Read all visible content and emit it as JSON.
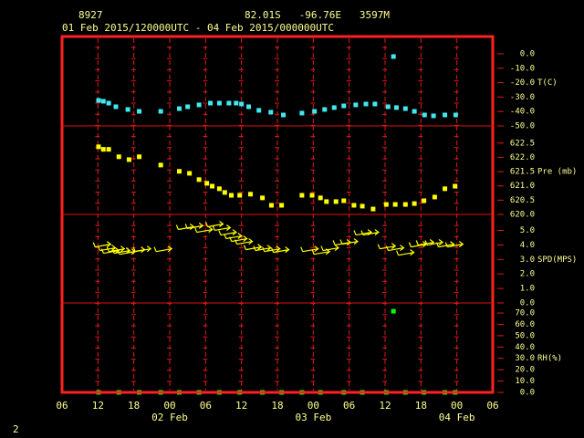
{
  "header": {
    "station": "8927",
    "location": "82.01S   -96.76E   3597M",
    "period": "01 Feb 2015/120000UTC - 04 Feb 2015/000000UTC"
  },
  "page_number": "2",
  "chart_data": [
    {
      "type": "scatter",
      "y_label": "T(C)",
      "color": "#40e8f0",
      "xlim": [
        0,
        72
      ],
      "ylim": [
        -50,
        12
      ],
      "yticks": [
        {
          "value": 0,
          "label": "0.0"
        },
        {
          "value": -10,
          "label": "-10.0"
        },
        {
          "value": -20,
          "label": "-20.0"
        },
        {
          "value": -30,
          "label": "-30.0"
        },
        {
          "value": -40,
          "label": "-40.0"
        },
        {
          "value": -50,
          "label": "-50.0"
        }
      ],
      "x": [
        6.1,
        6.9,
        7.8,
        9.0,
        11.0,
        12.9,
        16.5,
        19.6,
        21.0,
        22.9,
        24.8,
        26.3,
        27.9,
        29.1,
        30.0,
        31.2,
        32.9,
        34.9,
        37.0,
        40.1,
        42.2,
        43.9,
        45.5,
        47.1,
        49.1,
        50.8,
        52.3,
        54.5,
        55.4,
        55.9,
        57.4,
        58.9,
        60.6,
        62.1,
        64.0,
        65.8
      ],
      "values": [
        -32.3,
        -32.9,
        -34.2,
        -36.7,
        -38.6,
        -39.9,
        -39.9,
        -38.0,
        -36.7,
        -35.4,
        -34.2,
        -34.2,
        -34.2,
        -34.2,
        -34.8,
        -36.7,
        -39.2,
        -40.5,
        -42.4,
        -41.1,
        -39.9,
        -38.6,
        -37.3,
        -36.1,
        -35.4,
        -34.8,
        -34.8,
        -36.7,
        -1.9,
        -37.3,
        -38.0,
        -39.9,
        -42.4,
        -43.0,
        -42.4,
        -42.4
      ]
    },
    {
      "type": "scatter",
      "y_label": "Pre (mb)",
      "color": "#ffff00",
      "xlim": [
        0,
        72
      ],
      "ylim": [
        620,
        623.1
      ],
      "yticks": [
        622.5,
        {
          "value": 622,
          "label": "622.0"
        },
        621.5,
        {
          "value": 621,
          "label": "621.0"
        },
        620.5,
        {
          "value": 620,
          "label": "620.0"
        }
      ],
      "x": [
        6.1,
        6.9,
        7.8,
        9.5,
        11.2,
        12.9,
        16.5,
        19.6,
        21.3,
        22.9,
        24.2,
        25.1,
        26.3,
        27.2,
        28.3,
        29.7,
        31.5,
        33.5,
        35.0,
        36.7,
        40.1,
        41.8,
        43.2,
        44.2,
        45.8,
        47.1,
        48.8,
        50.2,
        52.0,
        54.2,
        55.7,
        57.4,
        58.9,
        60.5,
        62.3,
        64.0,
        65.7
      ],
      "values": [
        622.37,
        622.28,
        622.28,
        622.02,
        621.92,
        622.02,
        621.73,
        621.51,
        621.44,
        621.22,
        621.09,
        620.99,
        620.9,
        620.77,
        620.67,
        620.67,
        620.71,
        620.58,
        620.32,
        620.32,
        620.67,
        620.67,
        620.58,
        620.45,
        620.45,
        620.48,
        620.32,
        620.29,
        620.19,
        620.35,
        620.35,
        620.35,
        620.38,
        620.48,
        620.61,
        620.9,
        620.99
      ]
    },
    {
      "type": "wind",
      "y_label": "SPD(MPS)",
      "color": "#ffff00",
      "xlim": [
        0,
        72
      ],
      "ylim": [
        0,
        6.1
      ],
      "yticks": [
        {
          "value": 5,
          "label": "5.0"
        },
        {
          "value": 4,
          "label": "4.0"
        },
        {
          "value": 3,
          "label": "3.0"
        },
        {
          "value": 2,
          "label": "2.0"
        },
        {
          "value": 1,
          "label": "1.0"
        },
        {
          "value": 0,
          "label": "0.0"
        }
      ],
      "x": [
        6.9,
        7.7,
        8.3,
        9.2,
        10.1,
        11.0,
        12.6,
        13.6,
        17.1,
        20.8,
        22.3,
        23.9,
        25.7,
        26.9,
        27.9,
        28.8,
        29.7,
        30.6,
        32.1,
        33.7,
        35.2,
        36.7,
        41.6,
        43.5,
        45.0,
        47.0,
        48.2,
        50.5,
        51.7,
        54.5,
        55.9,
        57.6,
        59.7,
        60.9,
        62.4,
        64.3,
        65.8
      ],
      "values": [
        4.05,
        3.8,
        3.61,
        3.73,
        3.61,
        3.54,
        3.67,
        3.73,
        3.73,
        5.25,
        5.32,
        5.06,
        5.44,
        5.19,
        4.87,
        4.62,
        4.43,
        4.24,
        3.86,
        3.8,
        3.73,
        3.67,
        3.73,
        3.54,
        3.8,
        4.18,
        4.24,
        4.87,
        4.87,
        3.92,
        3.8,
        3.48,
        4.05,
        4.18,
        4.18,
        4.05,
        4.05
      ]
    },
    {
      "type": "scatter",
      "y_label": "RH(%)",
      "color": "#00ff00",
      "xlim": [
        0,
        72
      ],
      "ylim": [
        0,
        78.9
      ],
      "yticks": [
        {
          "value": 70,
          "label": "70.0"
        },
        {
          "value": 60,
          "label": "60.0"
        },
        {
          "value": 50,
          "label": "50.0"
        },
        {
          "value": 40,
          "label": "40.0"
        },
        {
          "value": 30,
          "label": "30.0"
        },
        {
          "value": 20,
          "label": "20.0"
        },
        {
          "value": 10,
          "label": "10.0"
        },
        {
          "value": 0,
          "label": "0.0"
        }
      ],
      "x": [
        6.1,
        9.5,
        12.9,
        16.5,
        19.6,
        22.9,
        26.3,
        29.7,
        33.5,
        36.7,
        40.1,
        43.2,
        47.1,
        50.2,
        54.2,
        55.4,
        57.4,
        60.5,
        64.0,
        65.7
      ],
      "values": [
        0,
        0,
        0,
        0,
        0,
        0,
        0,
        0,
        0,
        0,
        0,
        0,
        0,
        0,
        0,
        71.6,
        0,
        0,
        0,
        0
      ],
      "xticks": [
        {
          "value": 0,
          "label": "06"
        },
        {
          "value": 6,
          "label": "12"
        },
        {
          "value": 12,
          "label": "18"
        },
        {
          "value": 18,
          "label": "00"
        },
        {
          "value": 24,
          "label": "06"
        },
        {
          "value": 30,
          "label": "12"
        },
        {
          "value": 36,
          "label": "18"
        },
        {
          "value": 42,
          "label": "00"
        },
        {
          "value": 48,
          "label": "06"
        },
        {
          "value": 54,
          "label": "12"
        },
        {
          "value": 60,
          "label": "18"
        },
        {
          "value": 66,
          "label": "00"
        },
        {
          "value": 72,
          "label": "06"
        }
      ],
      "date_labels": [
        {
          "value": 18,
          "label": "02 Feb"
        },
        {
          "value": 42,
          "label": "03 Feb"
        },
        {
          "value": 66,
          "label": "04 Feb"
        }
      ]
    }
  ]
}
